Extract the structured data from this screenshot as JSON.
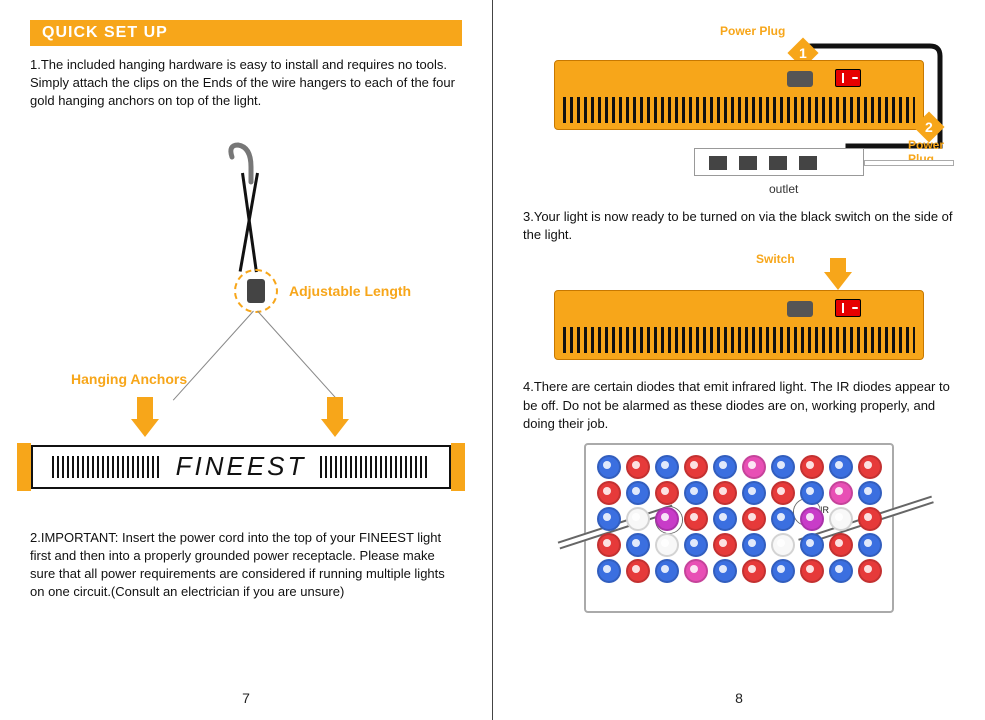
{
  "colors": {
    "accent": "#f7a61a",
    "text": "#111111",
    "switch_red": "#e60000",
    "led_blue": "#3b6fe0",
    "led_red": "#e63a3a",
    "led_pink": "#e84fb5",
    "led_white": "#f8f8f8",
    "led_magenta": "#c83cc8"
  },
  "left": {
    "header": "QUICK SET UP",
    "step1": "1.The included hanging hardware is easy to install and requires no tools. Simply attach the clips on the Ends of the wire hangers to each of the four gold hanging anchors on top of the light.",
    "adjustable_label": "Adjustable Length",
    "anchors_label": "Hanging Anchors",
    "brand": "FINEEST",
    "step2": "2.IMPORTANT: Insert the power cord into the top of your FINEEST light first and then into a properly grounded power receptacle. Please make sure that all power requirements are considered if running multiple lights on one circuit.(Consult an electrician if you are unsure)",
    "page_num": "7"
  },
  "right": {
    "power_plug_1": "Power Plug",
    "power_plug_2": "Power Plug",
    "badge1": "1",
    "badge2": "2",
    "outlet_label": "outlet",
    "step3": "3.Your light is now ready to be turned on via the black switch on the side of the light.",
    "switch_label": "Switch",
    "step4": "4.There are certain diodes that emit infrared light. The IR diodes appear to be off. Do not be alarmed as these diodes are on, working properly, and doing their job.",
    "ir_label": "IR",
    "page_num": "8",
    "led_grid": [
      [
        "blue",
        "red",
        "blue",
        "red",
        "blue",
        "pink",
        "blue",
        "red",
        "blue",
        "red"
      ],
      [
        "red",
        "blue",
        "red",
        "blue",
        "red",
        "blue",
        "red",
        "blue",
        "pink",
        "blue"
      ],
      [
        "blue",
        "white",
        "magenta",
        "red",
        "blue",
        "red",
        "blue",
        "magenta",
        "white",
        "red"
      ],
      [
        "red",
        "blue",
        "white",
        "blue",
        "red",
        "blue",
        "white",
        "blue",
        "red",
        "blue"
      ],
      [
        "blue",
        "red",
        "blue",
        "pink",
        "blue",
        "red",
        "blue",
        "red",
        "blue",
        "red"
      ]
    ]
  }
}
